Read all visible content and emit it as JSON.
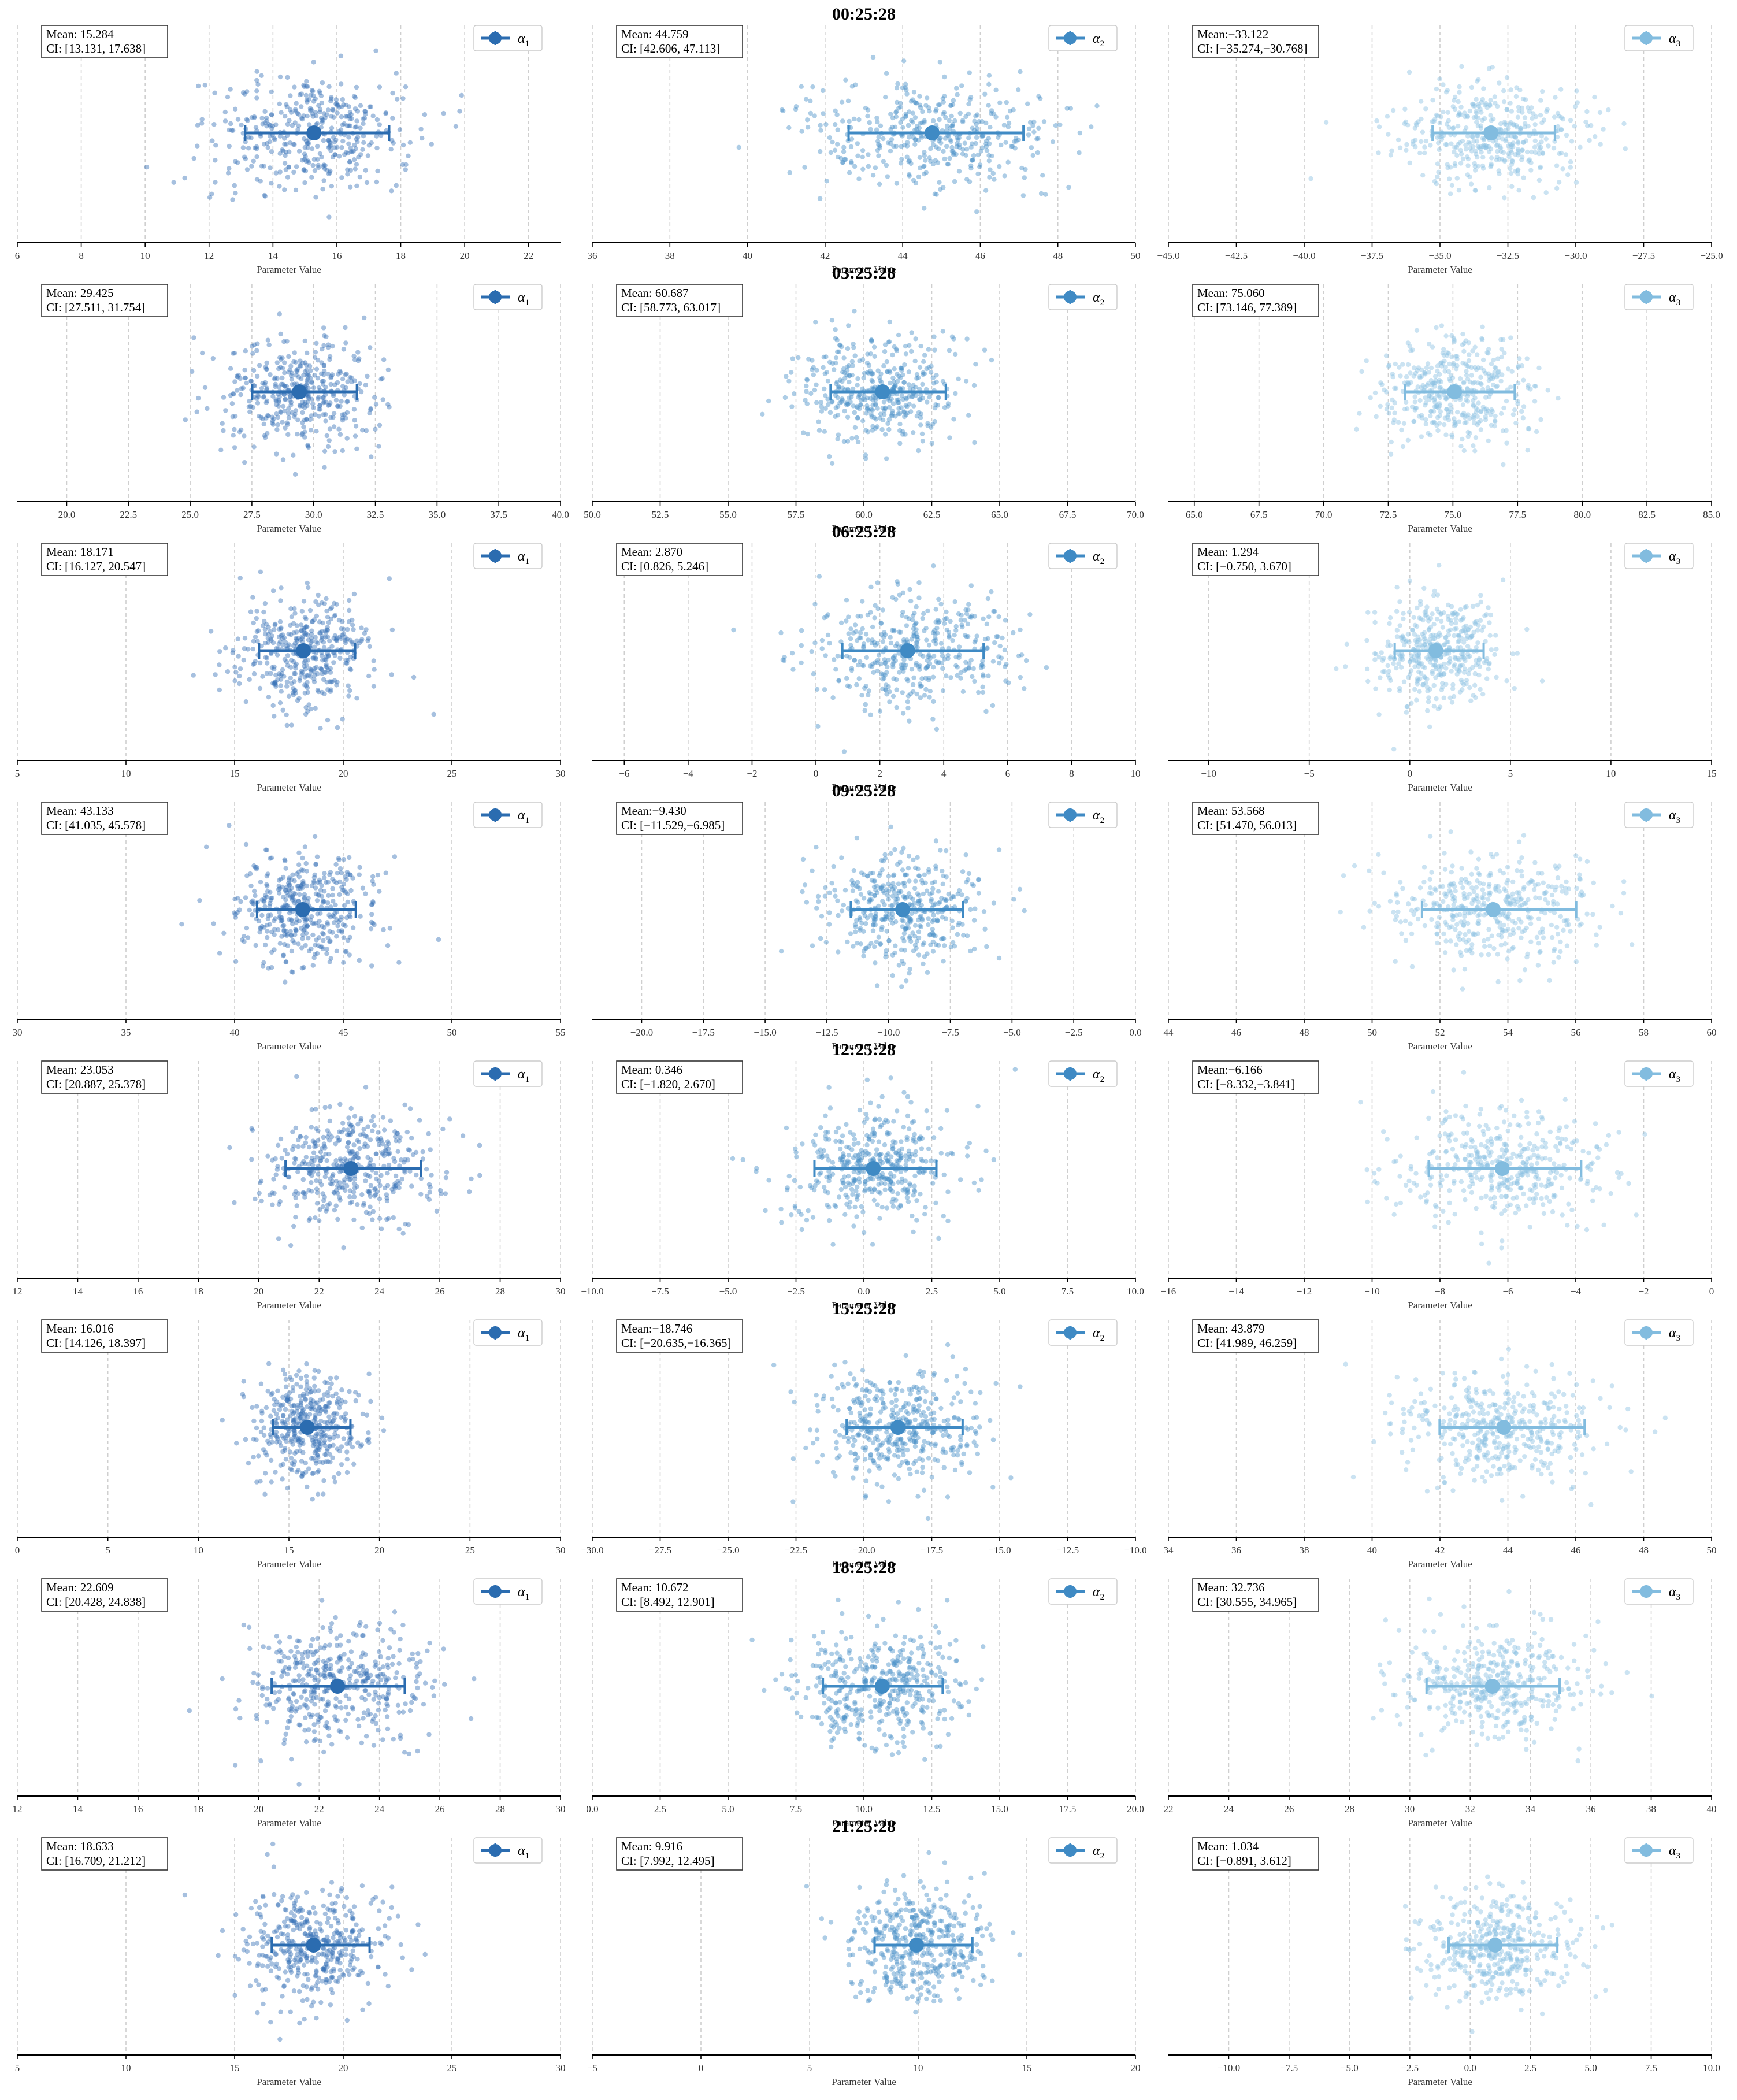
{
  "figure": {
    "xlabel": "Parameter Value",
    "legend_labels": [
      "α",
      "α",
      "α"
    ],
    "legend_subscripts": [
      "1",
      "2",
      "3"
    ],
    "series_colors": [
      "#2b6cb0",
      "#3f8ac4",
      "#82bcdf"
    ],
    "point_colors": [
      "#3a74b8",
      "#4a90c8",
      "#8cc1e2"
    ],
    "grid": "vertical dashed",
    "legend_placement": "top-right"
  },
  "chart_data": [
    {
      "type": "scatter",
      "row_title": "00:25:28",
      "panels": [
        {
          "series": "α1",
          "mean": 15.284,
          "ci": [
            13.131,
            17.638
          ],
          "mean_text": "Mean: 15.284",
          "ci_text": "CI: [13.131, 17.638]",
          "xlim": [
            6,
            23
          ],
          "ticks": [
            6,
            8,
            10,
            12,
            14,
            16,
            18,
            20,
            22
          ],
          "tick_labels": [
            "6",
            "8",
            "10",
            "12",
            "14",
            "16",
            "18",
            "20",
            "22"
          ]
        },
        {
          "series": "α2",
          "mean": 44.759,
          "ci": [
            42.606,
            47.113
          ],
          "mean_text": "Mean: 44.759",
          "ci_text": "CI: [42.606, 47.113]",
          "xlim": [
            36,
            50
          ],
          "ticks": [
            36,
            38,
            40,
            42,
            44,
            46,
            48,
            50
          ],
          "tick_labels": [
            "36",
            "38",
            "40",
            "42",
            "44",
            "46",
            "48",
            "50"
          ]
        },
        {
          "series": "α3",
          "mean": -33.122,
          "ci": [
            -35.274,
            -30.768
          ],
          "mean_text": "Mean:−33.122",
          "ci_text": "CI: [−35.274,−30.768]",
          "xlim": [
            -45,
            -25
          ],
          "ticks": [
            -45,
            -42.5,
            -40,
            -37.5,
            -35,
            -32.5,
            -30,
            -27.5,
            -25
          ],
          "tick_labels": [
            "−45.0",
            "−42.5",
            "−40.0",
            "−37.5",
            "−35.0",
            "−32.5",
            "−30.0",
            "−27.5",
            "−25.0"
          ]
        }
      ]
    },
    {
      "type": "scatter",
      "row_title": "03:25:28",
      "panels": [
        {
          "series": "α1",
          "mean": 29.425,
          "ci": [
            27.511,
            31.754
          ],
          "mean_text": "Mean: 29.425",
          "ci_text": "CI: [27.511, 31.754]",
          "xlim": [
            18,
            40
          ],
          "ticks": [
            20,
            22.5,
            25,
            27.5,
            30,
            32.5,
            35,
            37.5,
            40
          ],
          "tick_labels": [
            "20.0",
            "22.5",
            "25.0",
            "27.5",
            "30.0",
            "32.5",
            "35.0",
            "37.5",
            "40.0"
          ]
        },
        {
          "series": "α2",
          "mean": 60.687,
          "ci": [
            58.773,
            63.017
          ],
          "mean_text": "Mean: 60.687",
          "ci_text": "CI: [58.773, 63.017]",
          "xlim": [
            50,
            70
          ],
          "ticks": [
            50,
            52.5,
            55,
            57.5,
            60,
            62.5,
            65,
            67.5,
            70
          ],
          "tick_labels": [
            "50.0",
            "52.5",
            "55.0",
            "57.5",
            "60.0",
            "62.5",
            "65.0",
            "67.5",
            "70.0"
          ]
        },
        {
          "series": "α3",
          "mean": 75.06,
          "ci": [
            73.146,
            77.389
          ],
          "mean_text": "Mean: 75.060",
          "ci_text": "CI: [73.146, 77.389]",
          "xlim": [
            64,
            85
          ],
          "ticks": [
            65,
            67.5,
            70,
            72.5,
            75,
            77.5,
            80,
            82.5,
            85
          ],
          "tick_labels": [
            "65.0",
            "67.5",
            "70.0",
            "72.5",
            "75.0",
            "77.5",
            "80.0",
            "82.5",
            "85.0"
          ]
        }
      ]
    },
    {
      "type": "scatter",
      "row_title": "06:25:28",
      "panels": [
        {
          "series": "α1",
          "mean": 18.171,
          "ci": [
            16.127,
            20.547
          ],
          "mean_text": "Mean: 18.171",
          "ci_text": "CI: [16.127, 20.547]",
          "xlim": [
            5,
            30
          ],
          "ticks": [
            5,
            10,
            15,
            20,
            25,
            30
          ],
          "tick_labels": [
            "5",
            "10",
            "15",
            "20",
            "25",
            "30"
          ]
        },
        {
          "series": "α2",
          "mean": 2.87,
          "ci": [
            0.826,
            5.246
          ],
          "mean_text": "Mean: 2.870",
          "ci_text": "CI: [0.826, 5.246]",
          "xlim": [
            -7,
            10
          ],
          "ticks": [
            -6,
            -4,
            -2,
            0,
            2,
            4,
            6,
            8,
            10
          ],
          "tick_labels": [
            "−6",
            "−4",
            "−2",
            "0",
            "2",
            "4",
            "6",
            "8",
            "10"
          ]
        },
        {
          "series": "α3",
          "mean": 1.294,
          "ci": [
            -0.75,
            3.67
          ],
          "mean_text": "Mean: 1.294",
          "ci_text": "CI: [−0.750, 3.670]",
          "xlim": [
            -12,
            15
          ],
          "ticks": [
            -10,
            -5,
            0,
            5,
            10,
            15
          ],
          "tick_labels": [
            "−10",
            "−5",
            "0",
            "5",
            "10",
            "15"
          ]
        }
      ]
    },
    {
      "type": "scatter",
      "row_title": "09:25:28",
      "panels": [
        {
          "series": "α1",
          "mean": 43.133,
          "ci": [
            41.035,
            45.578
          ],
          "mean_text": "Mean: 43.133",
          "ci_text": "CI: [41.035, 45.578]",
          "xlim": [
            30,
            55
          ],
          "ticks": [
            30,
            35,
            40,
            45,
            50,
            55
          ],
          "tick_labels": [
            "30",
            "35",
            "40",
            "45",
            "50",
            "55"
          ]
        },
        {
          "series": "α2",
          "mean": -9.43,
          "ci": [
            -11.529,
            -6.985
          ],
          "mean_text": "Mean:−9.430",
          "ci_text": "CI: [−11.529,−6.985]",
          "xlim": [
            -22,
            0
          ],
          "ticks": [
            -20,
            -17.5,
            -15,
            -12.5,
            -10,
            -7.5,
            -5,
            -2.5,
            0
          ],
          "tick_labels": [
            "−20.0",
            "−17.5",
            "−15.0",
            "−12.5",
            "−10.0",
            "−7.5",
            "−5.0",
            "−2.5",
            "0.0"
          ]
        },
        {
          "series": "α3",
          "mean": 53.568,
          "ci": [
            51.47,
            56.013
          ],
          "mean_text": "Mean: 53.568",
          "ci_text": "CI: [51.470, 56.013]",
          "xlim": [
            44,
            60
          ],
          "ticks": [
            44,
            46,
            48,
            50,
            52,
            54,
            56,
            58,
            60
          ],
          "tick_labels": [
            "44",
            "46",
            "48",
            "50",
            "52",
            "54",
            "56",
            "58",
            "60"
          ]
        }
      ]
    },
    {
      "type": "scatter",
      "row_title": "12:25:28",
      "panels": [
        {
          "series": "α1",
          "mean": 23.053,
          "ci": [
            20.887,
            25.378
          ],
          "mean_text": "Mean: 23.053",
          "ci_text": "CI: [20.887, 25.378]",
          "xlim": [
            12,
            30
          ],
          "ticks": [
            12,
            14,
            16,
            18,
            20,
            22,
            24,
            26,
            28,
            30
          ],
          "tick_labels": [
            "12",
            "14",
            "16",
            "18",
            "20",
            "22",
            "24",
            "26",
            "28",
            "30"
          ]
        },
        {
          "series": "α2",
          "mean": 0.346,
          "ci": [
            -1.82,
            2.67
          ],
          "mean_text": "Mean: 0.346",
          "ci_text": "CI: [−1.820, 2.670]",
          "xlim": [
            -10,
            10
          ],
          "ticks": [
            -10,
            -7.5,
            -5,
            -2.5,
            0,
            2.5,
            5,
            7.5,
            10
          ],
          "tick_labels": [
            "−10.0",
            "−7.5",
            "−5.0",
            "−2.5",
            "0.0",
            "2.5",
            "5.0",
            "7.5",
            "10.0"
          ]
        },
        {
          "series": "α3",
          "mean": -6.166,
          "ci": [
            -8.332,
            -3.841
          ],
          "mean_text": "Mean:−6.166",
          "ci_text": "CI: [−8.332,−3.841]",
          "xlim": [
            -16,
            0
          ],
          "ticks": [
            -16,
            -14,
            -12,
            -10,
            -8,
            -6,
            -4,
            -2,
            0
          ],
          "tick_labels": [
            "−16",
            "−14",
            "−12",
            "−10",
            "−8",
            "−6",
            "−4",
            "−2",
            "0"
          ]
        }
      ]
    },
    {
      "type": "scatter",
      "row_title": "15:25:28",
      "panels": [
        {
          "series": "α1",
          "mean": 16.016,
          "ci": [
            14.126,
            18.397
          ],
          "mean_text": "Mean: 16.016",
          "ci_text": "CI: [14.126, 18.397]",
          "xlim": [
            0,
            30
          ],
          "ticks": [
            0,
            5,
            10,
            15,
            20,
            25,
            30
          ],
          "tick_labels": [
            "0",
            "5",
            "10",
            "15",
            "20",
            "25",
            "30"
          ]
        },
        {
          "series": "α2",
          "mean": -18.746,
          "ci": [
            -20.635,
            -16.365
          ],
          "mean_text": "Mean:−18.746",
          "ci_text": "CI: [−20.635,−16.365]",
          "xlim": [
            -30,
            -10
          ],
          "ticks": [
            -30,
            -27.5,
            -25,
            -22.5,
            -20,
            -17.5,
            -15,
            -12.5,
            -10
          ],
          "tick_labels": [
            "−30.0",
            "−27.5",
            "−25.0",
            "−22.5",
            "−20.0",
            "−17.5",
            "−15.0",
            "−12.5",
            "−10.0"
          ]
        },
        {
          "series": "α3",
          "mean": 43.879,
          "ci": [
            41.989,
            46.259
          ],
          "mean_text": "Mean: 43.879",
          "ci_text": "CI: [41.989, 46.259]",
          "xlim": [
            34,
            50
          ],
          "ticks": [
            34,
            36,
            38,
            40,
            42,
            44,
            46,
            48,
            50
          ],
          "tick_labels": [
            "34",
            "36",
            "38",
            "40",
            "42",
            "44",
            "46",
            "48",
            "50"
          ]
        }
      ]
    },
    {
      "type": "scatter",
      "row_title": "18:25:28",
      "panels": [
        {
          "series": "α1",
          "mean": 22.609,
          "ci": [
            20.428,
            24.838
          ],
          "mean_text": "Mean: 22.609",
          "ci_text": "CI: [20.428, 24.838]",
          "xlim": [
            12,
            30
          ],
          "ticks": [
            12,
            14,
            16,
            18,
            20,
            22,
            24,
            26,
            28,
            30
          ],
          "tick_labels": [
            "12",
            "14",
            "16",
            "18",
            "20",
            "22",
            "24",
            "26",
            "28",
            "30"
          ]
        },
        {
          "series": "α2",
          "mean": 10.672,
          "ci": [
            8.492,
            12.901
          ],
          "mean_text": "Mean: 10.672",
          "ci_text": "CI: [8.492, 12.901]",
          "xlim": [
            0,
            20
          ],
          "ticks": [
            0,
            2.5,
            5,
            7.5,
            10,
            12.5,
            15,
            17.5,
            20
          ],
          "tick_labels": [
            "0.0",
            "2.5",
            "5.0",
            "7.5",
            "10.0",
            "12.5",
            "15.0",
            "17.5",
            "20.0"
          ]
        },
        {
          "series": "α3",
          "mean": 32.736,
          "ci": [
            30.555,
            34.965
          ],
          "mean_text": "Mean: 32.736",
          "ci_text": "CI: [30.555, 34.965]",
          "xlim": [
            22,
            40
          ],
          "ticks": [
            22,
            24,
            26,
            28,
            30,
            32,
            34,
            36,
            38,
            40
          ],
          "tick_labels": [
            "22",
            "24",
            "26",
            "28",
            "30",
            "32",
            "34",
            "36",
            "38",
            "40"
          ]
        }
      ]
    },
    {
      "type": "scatter",
      "row_title": "21:25:28",
      "panels": [
        {
          "series": "α1",
          "mean": 18.633,
          "ci": [
            16.709,
            21.212
          ],
          "mean_text": "Mean: 18.633",
          "ci_text": "CI: [16.709, 21.212]",
          "xlim": [
            5,
            30
          ],
          "ticks": [
            5,
            10,
            15,
            20,
            25,
            30
          ],
          "tick_labels": [
            "5",
            "10",
            "15",
            "20",
            "25",
            "30"
          ]
        },
        {
          "series": "α2",
          "mean": 9.916,
          "ci": [
            7.992,
            12.495
          ],
          "mean_text": "Mean: 9.916",
          "ci_text": "CI: [7.992, 12.495]",
          "xlim": [
            -5,
            20
          ],
          "ticks": [
            -5,
            0,
            5,
            10,
            15,
            20
          ],
          "tick_labels": [
            "−5",
            "0",
            "5",
            "10",
            "15",
            "20"
          ]
        },
        {
          "series": "α3",
          "mean": 1.034,
          "ci": [
            -0.891,
            3.612
          ],
          "mean_text": "Mean: 1.034",
          "ci_text": "CI: [−0.891, 3.612]",
          "xlim": [
            -12.5,
            10
          ],
          "ticks": [
            -10,
            -7.5,
            -5,
            -2.5,
            0,
            2.5,
            5,
            7.5,
            10
          ],
          "tick_labels": [
            "−10.0",
            "−7.5",
            "−5.0",
            "−2.5",
            "0.0",
            "2.5",
            "5.0",
            "7.5",
            "10.0"
          ]
        }
      ]
    }
  ]
}
